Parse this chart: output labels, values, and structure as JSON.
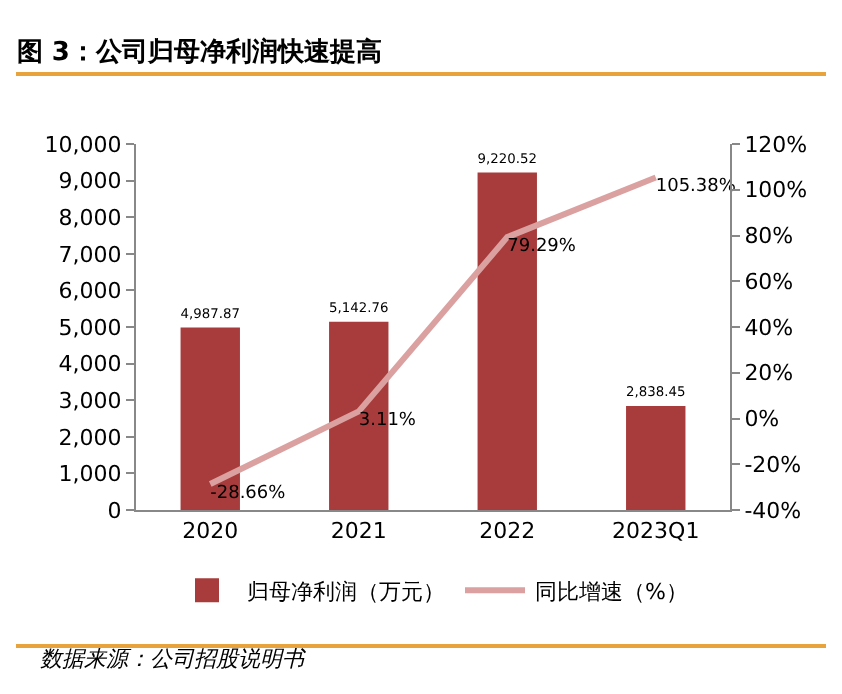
{
  "chart_data": {
    "type": "bar",
    "title": "图 3：公司归母净利润快速提高",
    "categories": [
      "2020",
      "2021",
      "2022",
      "2023Q1"
    ],
    "series": [
      {
        "name": "归母净利润（万元）",
        "color": "#a83c3c",
        "values": [
          4987.87,
          5142.76,
          9220.52,
          2838.45
        ],
        "value_labels": [
          "4,987.87",
          "5,142.76",
          "9,220.52",
          "2,838.45"
        ]
      },
      {
        "name": "同比增速（%）",
        "type": "line",
        "axis": "y2",
        "color": "#dba1a1",
        "values": [
          -28.66,
          3.11,
          79.29,
          105.38
        ],
        "value_labels": [
          "-28.66%",
          "3.11%",
          "79.29%",
          "105.38%"
        ]
      }
    ],
    "ylim": [
      0,
      10000
    ],
    "yticks": [
      {
        "value": 0,
        "label": "0"
      },
      {
        "value": 1000,
        "label": "1,000"
      },
      {
        "value": 2000,
        "label": "2,000"
      },
      {
        "value": 3000,
        "label": "3,000"
      },
      {
        "value": 4000,
        "label": "4,000"
      },
      {
        "value": 5000,
        "label": "5,000"
      },
      {
        "value": 6000,
        "label": "6,000"
      },
      {
        "value": 7000,
        "label": "7,000"
      },
      {
        "value": 8000,
        "label": "8,000"
      },
      {
        "value": 9000,
        "label": "9,000"
      },
      {
        "value": 10000,
        "label": "10,000"
      }
    ],
    "y2lim": [
      -40,
      120
    ],
    "y2ticks": [
      {
        "value": -40,
        "label": "-40%"
      },
      {
        "value": -20,
        "label": "-20%"
      },
      {
        "value": 0,
        "label": "0%"
      },
      {
        "value": 20,
        "label": "20%"
      },
      {
        "value": 40,
        "label": "40%"
      },
      {
        "value": 60,
        "label": "60%"
      },
      {
        "value": 80,
        "label": "80%"
      },
      {
        "value": 100,
        "label": "100%"
      },
      {
        "value": 120,
        "label": "120%"
      }
    ],
    "grid": false,
    "legend": "bottom",
    "annotations": [
      "数据来源：公司招股说明书"
    ]
  }
}
